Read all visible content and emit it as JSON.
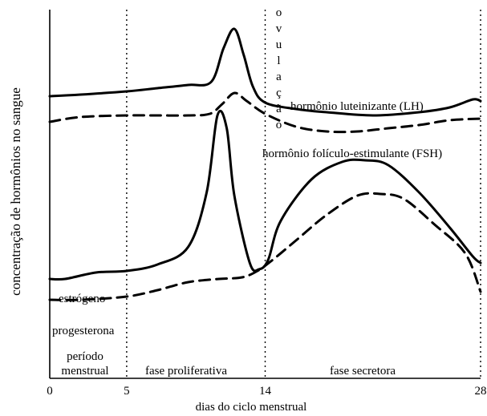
{
  "chart_data": {
    "type": "line",
    "title": "",
    "xlabel": "dias do ciclo menstrual",
    "ylabel": "concentração de hormônios no sangue",
    "xlim": [
      0,
      28
    ],
    "ylim": [
      0,
      100
    ],
    "x_ticks": [
      0,
      5,
      14,
      28
    ],
    "grid": false,
    "reference_lines": [
      {
        "x": 5,
        "style": "dotted"
      },
      {
        "x": 14,
        "style": "dotted",
        "label": "ovulação"
      },
      {
        "x": 28,
        "style": "dotted"
      }
    ],
    "phases": [
      {
        "from": 0,
        "to": 5,
        "label_line1": "período",
        "label_line2": "menstrual"
      },
      {
        "from": 5,
        "to": 14,
        "label_line1": "fase proliferativa"
      },
      {
        "from": 14,
        "to": 28,
        "label_line1": "fase secretora"
      }
    ],
    "series": [
      {
        "name": "hormônio luteinizante (LH)",
        "style": "solid",
        "x": [
          0,
          2,
          5,
          7,
          9,
          10.5,
          11.3,
          12,
          12.6,
          13.2,
          14,
          16,
          18,
          21,
          24,
          26,
          27.5,
          28
        ],
        "y": [
          73,
          73.5,
          74.5,
          75.5,
          76.5,
          77.5,
          88,
          94,
          86,
          76,
          71,
          69,
          68,
          67,
          68,
          69.5,
          72,
          71.5
        ]
      },
      {
        "name": "hormônio folículo-estimulante (FSH)",
        "style": "dashed",
        "x": [
          0,
          2,
          5,
          7,
          9,
          10.4,
          11.2,
          12,
          12.8,
          14,
          16,
          18,
          20,
          22,
          24,
          26,
          28
        ],
        "y": [
          65,
          66.5,
          67,
          67,
          67,
          67.5,
          70.5,
          74,
          71.5,
          67.5,
          63.5,
          62,
          62,
          63,
          64,
          65.5,
          66
        ]
      },
      {
        "name": "estrógeno",
        "style": "solid",
        "x": [
          0,
          1,
          3,
          5,
          7,
          9,
          10.2,
          10.9,
          11.5,
          12,
          13,
          13.6,
          14.2,
          15,
          17,
          19,
          20.5,
          22,
          24,
          26,
          27.5,
          28
        ],
        "y": [
          16,
          16,
          18,
          18.5,
          20.5,
          26,
          43,
          67,
          63,
          42,
          21,
          19,
          22,
          34,
          47,
          52.5,
          53,
          51.5,
          43,
          32,
          23,
          21
        ]
      },
      {
        "name": "progesterona",
        "style": "dashed",
        "x": [
          0,
          2,
          5,
          7,
          9,
          11,
          12.5,
          13.5,
          14.5,
          16,
          18,
          20,
          21.5,
          23,
          25,
          27,
          28
        ],
        "y": [
          9.5,
          9.5,
          10.5,
          12.5,
          15,
          16,
          16.5,
          18.5,
          22,
          28,
          36,
          42,
          42.5,
          41,
          33,
          24,
          12
        ]
      }
    ]
  }
}
